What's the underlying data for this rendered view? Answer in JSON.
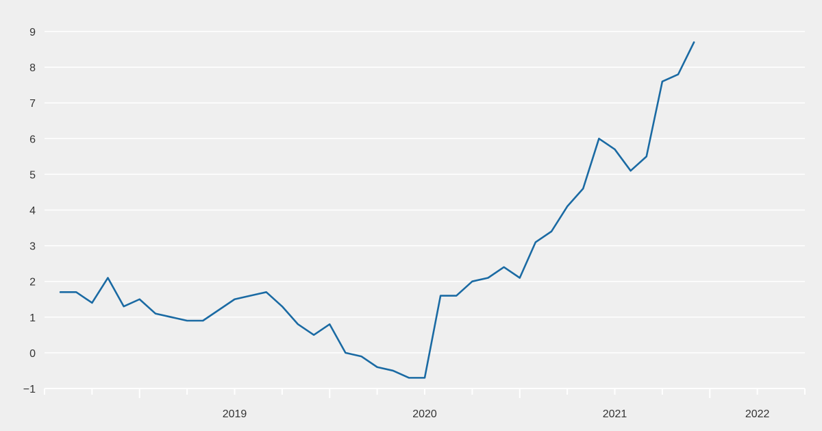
{
  "chart_data": {
    "type": "line",
    "title": "",
    "xlabel": "",
    "ylabel": "",
    "ylim": [
      -1,
      9
    ],
    "yticks": [
      -1,
      0,
      1,
      2,
      3,
      4,
      5,
      6,
      7,
      8,
      9
    ],
    "ytick_labels": [
      "−1",
      "0",
      "1",
      "2",
      "3",
      "4",
      "5",
      "6",
      "7",
      "8",
      "9"
    ],
    "x_range": [
      "2018-07",
      "2022-07"
    ],
    "x_period_labels": [
      "2019",
      "2020",
      "2021",
      "2022"
    ],
    "grid": true,
    "legend": "none",
    "line_color": "#1a6aa3",
    "series": [
      {
        "x": [
          "2018-08",
          "2018-09",
          "2018-10",
          "2018-11",
          "2018-12",
          "2019-01",
          "2019-02",
          "2019-03",
          "2019-04",
          "2019-05",
          "2019-06",
          "2019-07",
          "2019-08",
          "2019-09",
          "2019-10",
          "2019-11",
          "2019-12",
          "2020-01",
          "2020-02",
          "2020-03",
          "2020-04",
          "2020-05",
          "2020-06",
          "2020-07",
          "2020-08",
          "2020-09",
          "2020-10",
          "2020-11",
          "2020-12",
          "2021-01",
          "2021-02",
          "2021-03",
          "2021-04",
          "2021-05",
          "2021-06",
          "2021-07",
          "2021-08",
          "2021-09",
          "2021-10",
          "2021-11",
          "2021-12"
        ],
        "values": [
          1.7,
          1.7,
          1.4,
          2.1,
          1.3,
          1.5,
          1.1,
          1.0,
          0.9,
          0.9,
          1.2,
          1.5,
          1.6,
          1.7,
          1.3,
          0.8,
          0.5,
          0.8,
          0.0,
          -0.1,
          -0.4,
          -0.5,
          -0.7,
          -0.7,
          1.6,
          1.6,
          2.0,
          2.1,
          2.4,
          2.1,
          3.1,
          3.4,
          4.1,
          4.6,
          6.0,
          5.7,
          5.1,
          5.5,
          7.6,
          7.8,
          8.7
        ]
      }
    ]
  }
}
